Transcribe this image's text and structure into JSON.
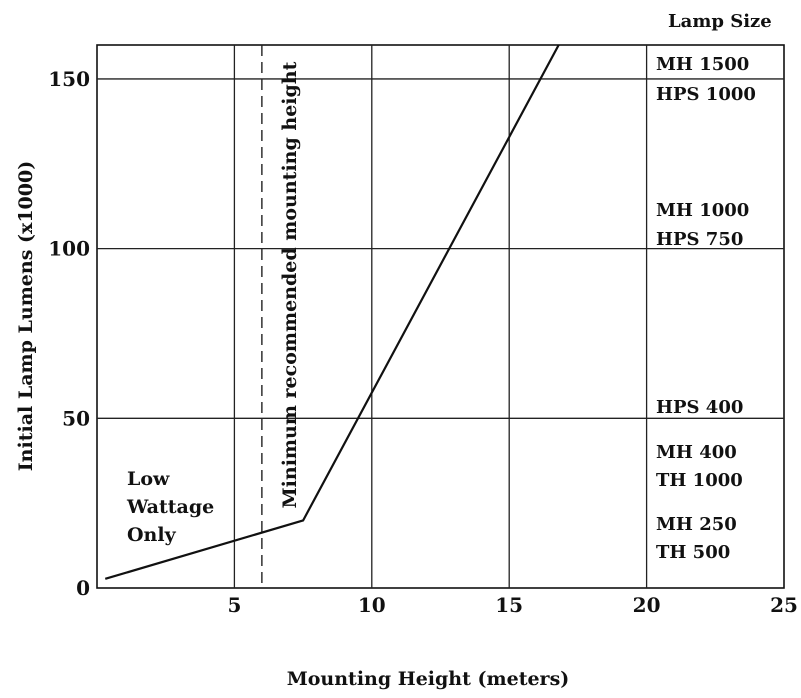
{
  "chart_data": {
    "type": "line",
    "title": "",
    "xlabel": "Mounting Height (meters)",
    "ylabel": "Initial Lamp Lumens (x1000)",
    "xlim": [
      0,
      25
    ],
    "ylim": [
      0,
      160
    ],
    "x_ticks": [
      5,
      10,
      15,
      20,
      25
    ],
    "y_ticks": [
      0,
      50,
      100,
      150
    ],
    "grid": {
      "vertical": [
        5,
        10,
        15,
        20
      ],
      "horizontal": [
        50,
        100,
        150
      ]
    },
    "series": [
      {
        "name": "",
        "x": [
          0.3,
          7.5,
          16.8
        ],
        "y": [
          2.7,
          19.9,
          160
        ]
      }
    ],
    "reference_line": {
      "x": 6,
      "style": "dashed",
      "label": "Minimum recommended mounting height"
    },
    "region_annotation": {
      "lines": [
        "Low",
        "Wattage",
        "Only"
      ]
    },
    "lamp_size": {
      "heading": "Lamp Size",
      "groups": [
        {
          "lines": [
            "MH 1500",
            "HPS 1000"
          ]
        },
        {
          "lines": [
            "MH 1000",
            "HPS 750"
          ]
        },
        {
          "lines": [
            "HPS 400"
          ]
        },
        {
          "lines": [
            "MH 400",
            "TH 1000"
          ]
        },
        {
          "lines": [
            "MH 250",
            "TH 500"
          ]
        }
      ]
    }
  }
}
